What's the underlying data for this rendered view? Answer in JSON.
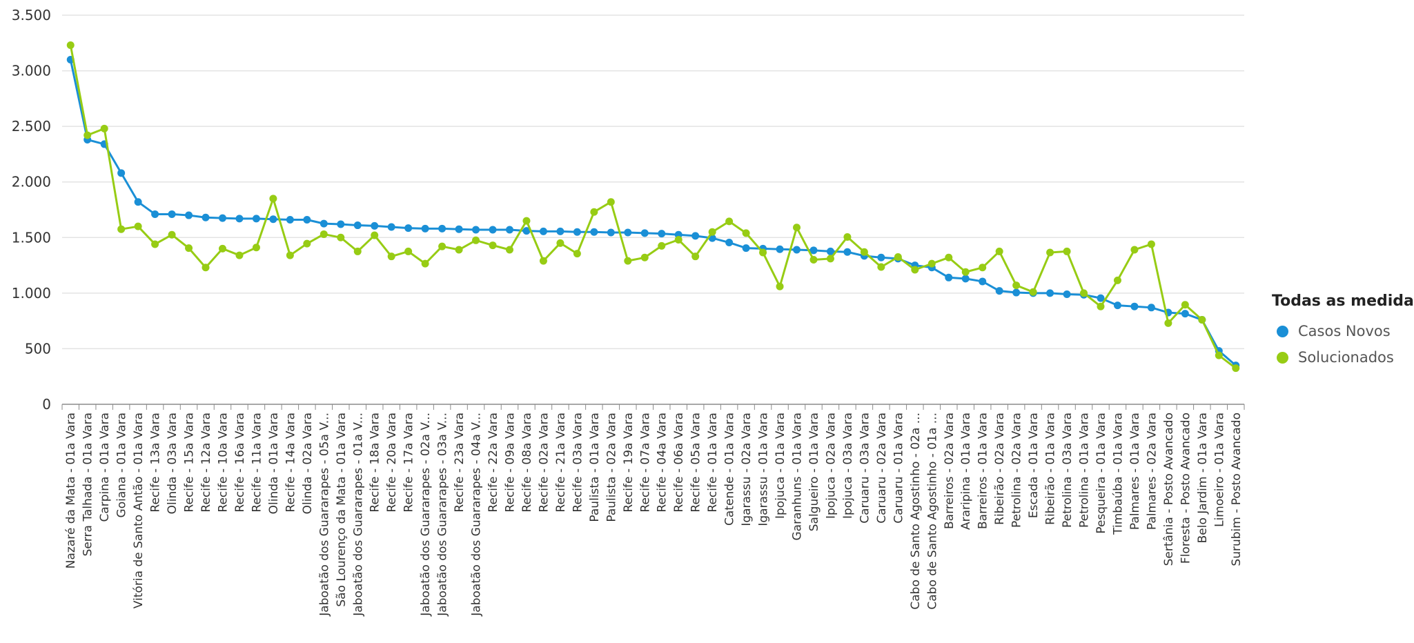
{
  "chart_data": {
    "type": "line",
    "title": "",
    "xlabel": "",
    "ylabel": "",
    "ylim": [
      0,
      3500
    ],
    "y_ticks": [
      {
        "value": 0,
        "label": "0"
      },
      {
        "value": 500,
        "label": "500"
      },
      {
        "value": 1000,
        "label": "1.000"
      },
      {
        "value": 1500,
        "label": "1.500"
      },
      {
        "value": 2000,
        "label": "2.000"
      },
      {
        "value": 2500,
        "label": "2.500"
      },
      {
        "value": 3000,
        "label": "3.000"
      },
      {
        "value": 3500,
        "label": "3.500"
      }
    ],
    "grid": true,
    "legend_position": "right",
    "categories": [
      "Nazaré da Mata - 01a Vara",
      "Serra Talhada - 01a Vara",
      "Carpina - 01a Vara",
      "Goiana - 01a Vara",
      "Vitória de Santo Antão - 01a Vara",
      "Recife - 13a Vara",
      "Olinda - 03a Vara",
      "Recife - 15a Vara",
      "Recife - 12a Vara",
      "Recife - 10a Vara",
      "Recife - 16a Vara",
      "Recife - 11a Vara",
      "Olinda - 01a Vara",
      "Recife - 14a Vara",
      "Olinda - 02a Vara",
      "Jaboatão dos Guararapes - 05a V...",
      "São Lourenço da Mata - 01a Vara",
      "Jaboatão dos Guararapes - 01a V...",
      "Recife - 18a Vara",
      "Recife - 20a Vara",
      "Recife - 17a Vara",
      "Jaboatão dos Guararapes - 02a V...",
      "Jaboatão dos Guararapes - 03a V...",
      "Recife - 23a Vara",
      "Jaboatão dos Guararapes - 04a V...",
      "Recife - 22a Vara",
      "Recife - 09a Vara",
      "Recife - 08a Vara",
      "Recife - 02a Vara",
      "Recife - 21a Vara",
      "Recife - 03a Vara",
      "Paulista - 01a Vara",
      "Paulista - 02a Vara",
      "Recife - 19a Vara",
      "Recife - 07a Vara",
      "Recife - 04a Vara",
      "Recife - 06a Vara",
      "Recife - 05a Vara",
      "Recife - 01a Vara",
      "Catende - 01a Vara",
      "Igarassu - 02a Vara",
      "Igarassu - 01a Vara",
      "Ipojuca - 01a Vara",
      "Garanhuns - 01a Vara",
      "Salgueiro - 01a Vara",
      "Ipojuca - 02a Vara",
      "Ipojuca - 03a Vara",
      "Caruaru - 03a Vara",
      "Caruaru - 02a Vara",
      "Caruaru - 01a Vara",
      "Cabo de Santo Agostinho - 02a ...",
      "Cabo de Santo Agostinho - 01a ...",
      "Barreiros - 02a Vara",
      "Araripina - 01a Vara",
      "Barreiros - 01a Vara",
      "Ribeirão - 02a Vara",
      "Petrolina - 02a Vara",
      "Escada - 01a Vara",
      "Ribeirão - 01a Vara",
      "Petrolina - 03a Vara",
      "Petrolina - 01a Vara",
      "Pesqueira - 01a Vara",
      "Timbaúba - 01a Vara",
      "Palmares - 01a Vara",
      "Palmares - 02a Vara",
      "Sertânia - Posto Avancado",
      "Floresta - Posto Avancado",
      "Belo Jardim - 01a Vara",
      "Limoeiro - 01a Vara",
      "Surubim - Posto Avancado"
    ],
    "series": [
      {
        "name": "Casos Novos",
        "color": "#1a8fd6",
        "values": [
          3100,
          2380,
          2340,
          2080,
          1820,
          1710,
          1710,
          1700,
          1680,
          1675,
          1670,
          1670,
          1665,
          1660,
          1660,
          1625,
          1620,
          1610,
          1605,
          1595,
          1585,
          1580,
          1580,
          1575,
          1570,
          1570,
          1570,
          1560,
          1555,
          1555,
          1550,
          1550,
          1545,
          1545,
          1540,
          1535,
          1525,
          1515,
          1495,
          1455,
          1405,
          1400,
          1395,
          1390,
          1385,
          1375,
          1370,
          1335,
          1320,
          1310,
          1250,
          1230,
          1140,
          1130,
          1105,
          1020,
          1005,
          1000,
          1000,
          990,
          985,
          955,
          890,
          880,
          870,
          825,
          815,
          760,
          480,
          350
        ]
      },
      {
        "name": "Solucionados",
        "color": "#97cc14",
        "values": [
          3230,
          2420,
          2480,
          1575,
          1600,
          1440,
          1525,
          1405,
          1230,
          1400,
          1340,
          1410,
          1850,
          1340,
          1445,
          1530,
          1500,
          1375,
          1520,
          1330,
          1375,
          1265,
          1420,
          1390,
          1475,
          1430,
          1390,
          1650,
          1290,
          1450,
          1355,
          1730,
          1820,
          1290,
          1320,
          1425,
          1480,
          1330,
          1550,
          1645,
          1540,
          1365,
          1060,
          1590,
          1300,
          1310,
          1505,
          1370,
          1235,
          1325,
          1210,
          1265,
          1320,
          1190,
          1230,
          1375,
          1070,
          1010,
          1365,
          1375,
          1000,
          880,
          1115,
          1390,
          1440,
          730,
          895,
          760,
          440,
          325
        ]
      }
    ],
    "legend_title": "Todas as medidas"
  }
}
